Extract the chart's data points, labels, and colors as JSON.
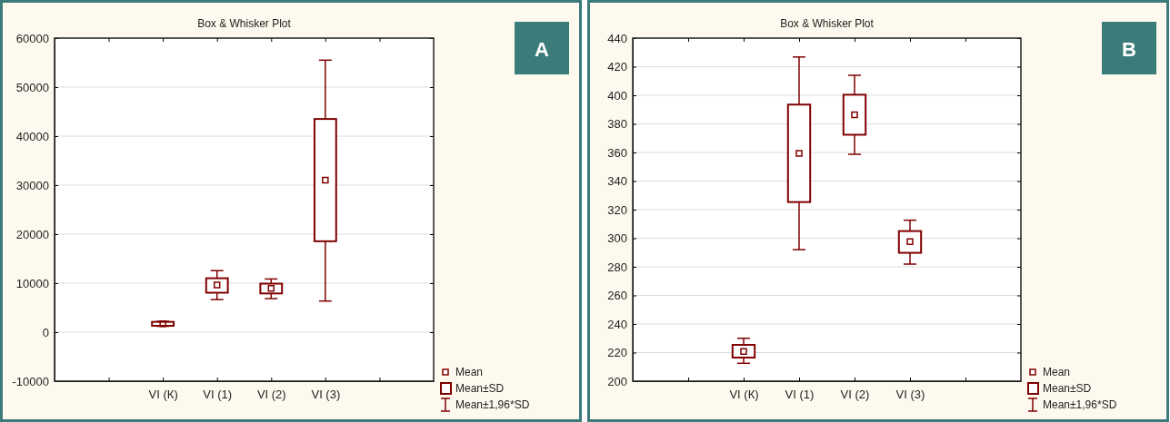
{
  "chart_data": [
    {
      "type": "box",
      "title": "Box & Whisker Plot",
      "categories": [
        null,
        "VI (К)",
        "VI (1)",
        "VI (2)",
        "VI (3)",
        null
      ],
      "color": "#800000",
      "boxes": [
        null,
        {
          "low": 1200,
          "q1": 1300,
          "median": 1700,
          "q3": 2100,
          "high": 2200
        },
        {
          "low": 6650,
          "q1": 8050,
          "median": 9650,
          "q3": 11000,
          "high": 12550
        },
        {
          "low": 6850,
          "q1": 7900,
          "median": 8950,
          "q3": 9900,
          "high": 10850
        },
        {
          "low": 6350,
          "q1": 18550,
          "median": 31000,
          "q3": 43500,
          "high": 55500
        },
        null
      ],
      "ylim": [
        -10000,
        60000
      ],
      "yticks": [
        -10000,
        0,
        10000,
        20000,
        30000,
        40000,
        50000,
        60000
      ],
      "grid": "y",
      "annotations": [
        "A",
        "Mean",
        "Mean±SD",
        "Mean±1,96*SD"
      ]
    },
    {
      "type": "box",
      "title": "Box & Whisker Plot",
      "categories": [
        null,
        "VI (К)",
        "VI (1)",
        "VI (2)",
        "VI (3)",
        null
      ],
      "color": "#800000",
      "boxes": [
        null,
        {
          "low": 212.5,
          "q1": 216.5,
          "median": 220.8,
          "q3": 225.4,
          "high": 230
        },
        {
          "low": 292,
          "q1": 325.3,
          "median": 359.4,
          "q3": 393.5,
          "high": 426.8
        },
        {
          "low": 358.7,
          "q1": 372.4,
          "median": 386.4,
          "q3": 400.4,
          "high": 414
        },
        {
          "low": 281.9,
          "q1": 289.8,
          "median": 297.6,
          "q3": 305,
          "high": 312.6
        },
        null
      ],
      "ylim": [
        200,
        440
      ],
      "yticks": [
        200,
        220,
        240,
        260,
        280,
        300,
        320,
        340,
        360,
        380,
        400,
        420,
        440
      ],
      "grid": "y",
      "annotations": [
        "B",
        "Mean",
        "Mean±SD",
        "Mean±1,96*SD"
      ]
    }
  ]
}
